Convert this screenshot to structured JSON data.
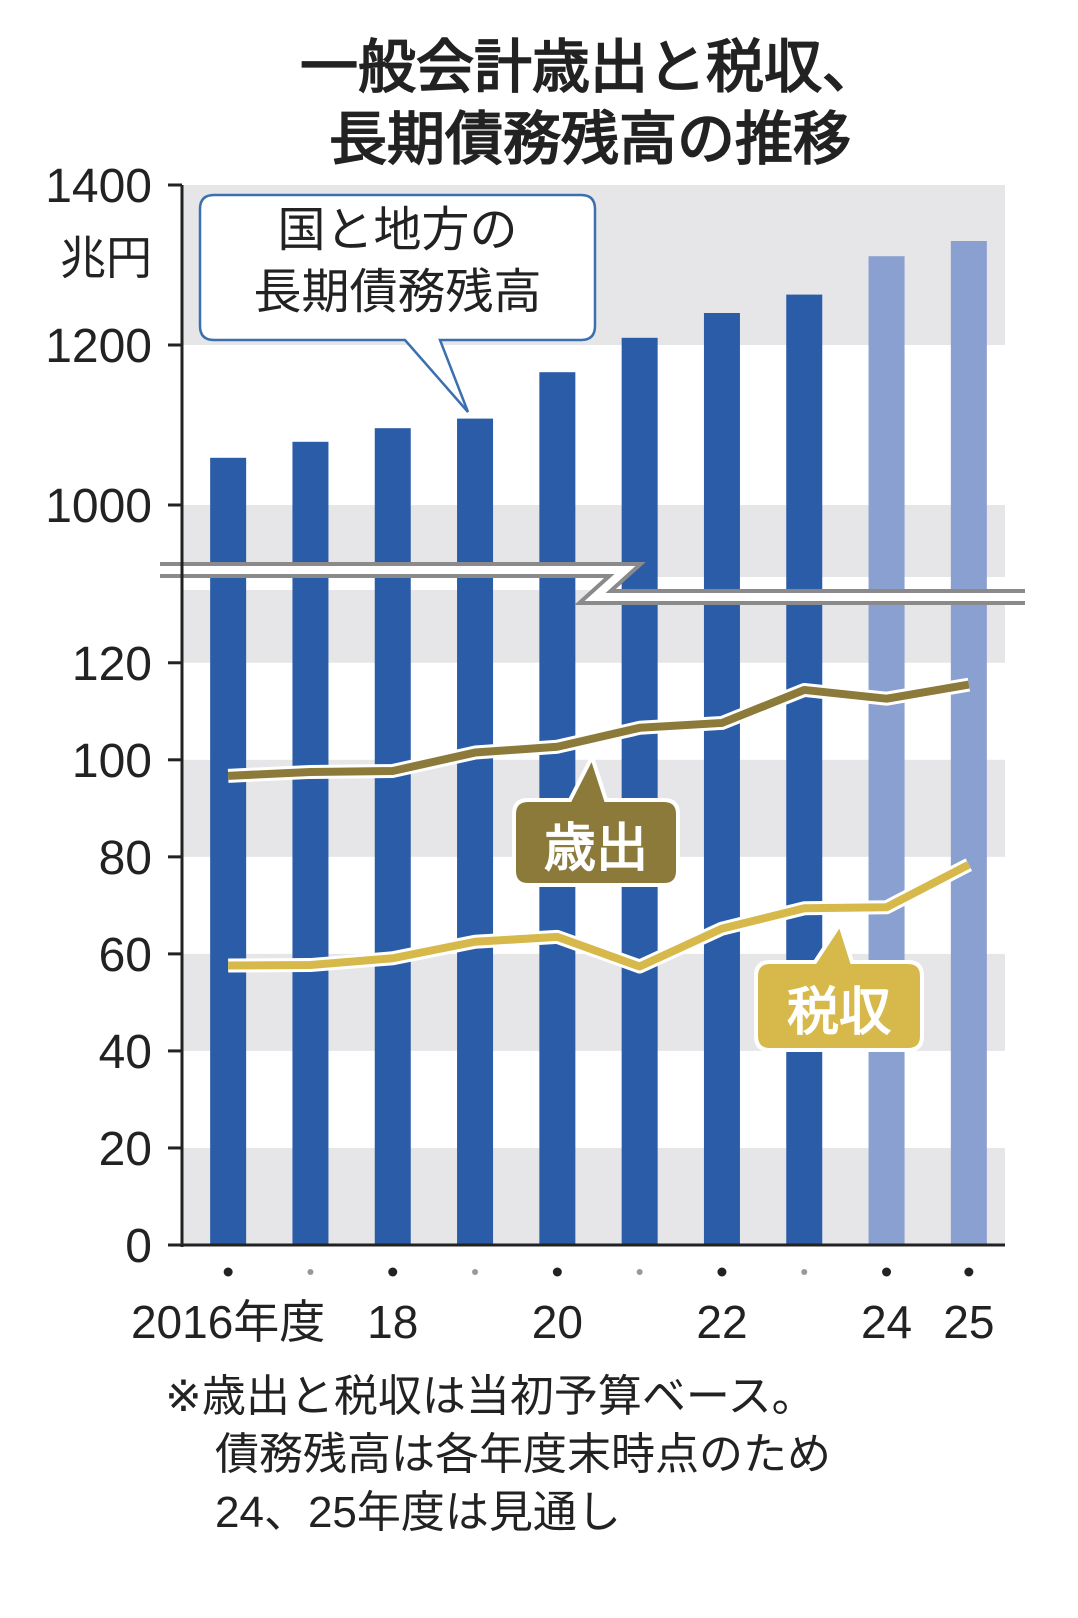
{
  "chart_data": {
    "type": "bar",
    "title": "一般会計歳出と税収、\n長期債務残高の推移",
    "y_unit": "兆円",
    "categories": [
      "2016年度",
      null,
      "18",
      null,
      "20",
      null,
      "22",
      null,
      "24",
      "25"
    ],
    "series": [
      {
        "name": "国と地方の\n長期債務残高",
        "type": "bar",
        "colors": [
          "#2a5ca8",
          "#2a5ca8",
          "#2a5ca8",
          "#2a5ca8",
          "#2a5ca8",
          "#2a5ca8",
          "#2a5ca8",
          "#2a5ca8",
          "#8aa0d0",
          "#8aa0d0"
        ],
        "values": [
          1059,
          1079,
          1096,
          1108,
          1166,
          1209,
          1240,
          1263,
          1311,
          1330
        ]
      },
      {
        "name": "歳出",
        "type": "line",
        "color": "#8b7a3a",
        "values": [
          96.7,
          97.5,
          97.7,
          101.5,
          102.7,
          106.6,
          107.6,
          114.4,
          112.6,
          115.5
        ]
      },
      {
        "name": "税収",
        "type": "line",
        "color": "#d6b94a",
        "values": [
          57.6,
          57.7,
          59.1,
          62.5,
          63.5,
          57.4,
          65.2,
          69.4,
          69.6,
          78.4
        ]
      }
    ],
    "ylim": [
      0,
      1400
    ],
    "axis_break": [
      135,
      910
    ],
    "yticks": [
      0,
      20,
      40,
      60,
      80,
      100,
      120,
      1000,
      1200,
      1400
    ],
    "grid": "bands",
    "note": "※歳出と税収は当初予算ベース。\n債務残高は各年度末時点のため\n24、25年度は見通し"
  }
}
